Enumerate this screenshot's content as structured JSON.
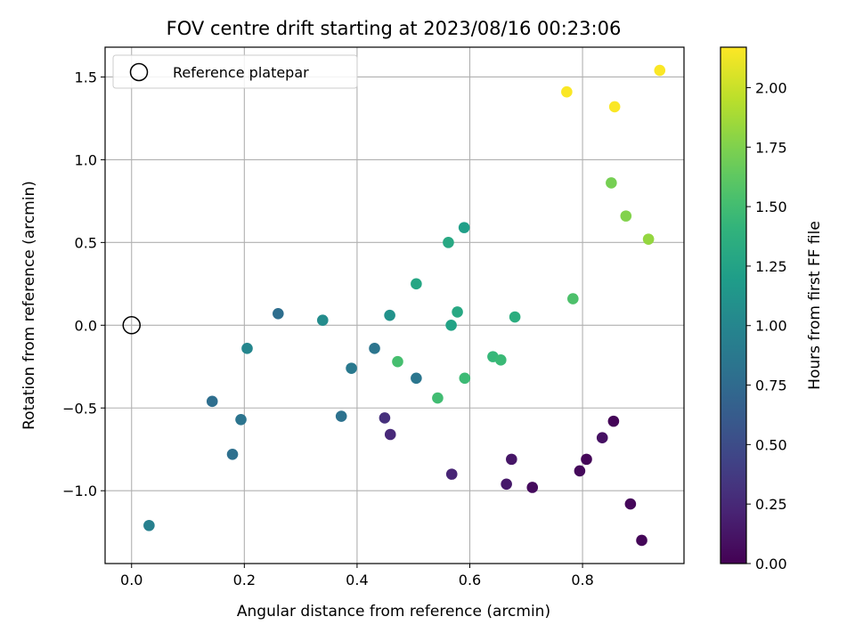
{
  "chart_data": {
    "type": "scatter",
    "title": "FOV centre drift starting at 2023/08/16 00:23:06",
    "xlabel": "Angular distance from reference (arcmin)",
    "ylabel": "Rotation from reference (arcmin)",
    "xlim": [
      -0.047,
      0.98
    ],
    "ylim": [
      -1.44,
      1.68
    ],
    "xticks": [
      0.0,
      0.2,
      0.4,
      0.6,
      0.8
    ],
    "xtick_labels": [
      "0.0",
      "0.2",
      "0.4",
      "0.6",
      "0.8"
    ],
    "yticks": [
      -1.0,
      -0.5,
      0.0,
      0.5,
      1.0,
      1.5
    ],
    "ytick_labels": [
      "−1.0",
      "−0.5",
      "0.0",
      "0.5",
      "1.0",
      "1.5"
    ],
    "grid": true,
    "legend": {
      "placement": "top-left",
      "entries": [
        {
          "label": "Reference platepar",
          "marker": "open-circle",
          "color": "#000000"
        }
      ]
    },
    "reference_point": {
      "x": 0.0,
      "y": 0.0
    },
    "colorbar": {
      "label": "Hours from first FF file",
      "colormap": "viridis",
      "range": [
        0.0,
        2.17
      ],
      "ticks": [
        0.0,
        0.25,
        0.5,
        0.75,
        1.0,
        1.25,
        1.5,
        1.75,
        2.0
      ],
      "tick_labels": [
        "0.00",
        "0.25",
        "0.50",
        "0.75",
        "1.00",
        "1.25",
        "1.50",
        "1.75",
        "2.00"
      ]
    },
    "points": [
      {
        "x": 0.855,
        "y": -0.58,
        "hours": 0.02
      },
      {
        "x": 0.807,
        "y": -0.81,
        "hours": 0.03
      },
      {
        "x": 0.795,
        "y": -0.88,
        "hours": 0.05
      },
      {
        "x": 0.885,
        "y": -1.08,
        "hours": 0.04
      },
      {
        "x": 0.905,
        "y": -1.3,
        "hours": 0.03
      },
      {
        "x": 0.711,
        "y": -0.98,
        "hours": 0.06
      },
      {
        "x": 0.835,
        "y": -0.68,
        "hours": 0.1
      },
      {
        "x": 0.674,
        "y": -0.81,
        "hours": 0.13
      },
      {
        "x": 0.665,
        "y": -0.96,
        "hours": 0.15
      },
      {
        "x": 0.568,
        "y": -0.9,
        "hours": 0.22
      },
      {
        "x": 0.459,
        "y": -0.66,
        "hours": 0.25
      },
      {
        "x": 0.449,
        "y": -0.56,
        "hours": 0.3
      },
      {
        "x": 0.143,
        "y": -0.46,
        "hours": 0.78
      },
      {
        "x": 0.179,
        "y": -0.78,
        "hours": 0.8
      },
      {
        "x": 0.194,
        "y": -0.57,
        "hours": 0.83
      },
      {
        "x": 0.205,
        "y": -0.14,
        "hours": 1.0
      },
      {
        "x": 0.26,
        "y": 0.07,
        "hours": 0.78
      },
      {
        "x": 0.339,
        "y": 0.03,
        "hours": 1.05
      },
      {
        "x": 0.372,
        "y": -0.55,
        "hours": 0.82
      },
      {
        "x": 0.39,
        "y": -0.26,
        "hours": 0.88
      },
      {
        "x": 0.431,
        "y": -0.14,
        "hours": 0.84
      },
      {
        "x": 0.458,
        "y": 0.06,
        "hours": 1.1
      },
      {
        "x": 0.505,
        "y": -0.32,
        "hours": 0.85
      },
      {
        "x": 0.031,
        "y": -1.21,
        "hours": 0.95
      },
      {
        "x": 0.505,
        "y": 0.25,
        "hours": 1.28
      },
      {
        "x": 0.562,
        "y": 0.5,
        "hours": 1.3
      },
      {
        "x": 0.59,
        "y": 0.59,
        "hours": 1.22
      },
      {
        "x": 0.567,
        "y": 0.0,
        "hours": 1.25
      },
      {
        "x": 0.578,
        "y": 0.08,
        "hours": 1.3
      },
      {
        "x": 0.68,
        "y": 0.05,
        "hours": 1.35
      },
      {
        "x": 0.472,
        "y": -0.22,
        "hours": 1.52
      },
      {
        "x": 0.543,
        "y": -0.44,
        "hours": 1.5
      },
      {
        "x": 0.591,
        "y": -0.32,
        "hours": 1.48
      },
      {
        "x": 0.641,
        "y": -0.19,
        "hours": 1.45
      },
      {
        "x": 0.655,
        "y": -0.21,
        "hours": 1.47
      },
      {
        "x": 0.783,
        "y": 0.16,
        "hours": 1.55
      },
      {
        "x": 0.851,
        "y": 0.86,
        "hours": 1.72
      },
      {
        "x": 0.877,
        "y": 0.66,
        "hours": 1.76
      },
      {
        "x": 0.917,
        "y": 0.52,
        "hours": 1.82
      },
      {
        "x": 0.772,
        "y": 1.41,
        "hours": 2.16
      },
      {
        "x": 0.857,
        "y": 1.32,
        "hours": 2.16
      },
      {
        "x": 0.937,
        "y": 1.54,
        "hours": 2.16
      }
    ]
  }
}
